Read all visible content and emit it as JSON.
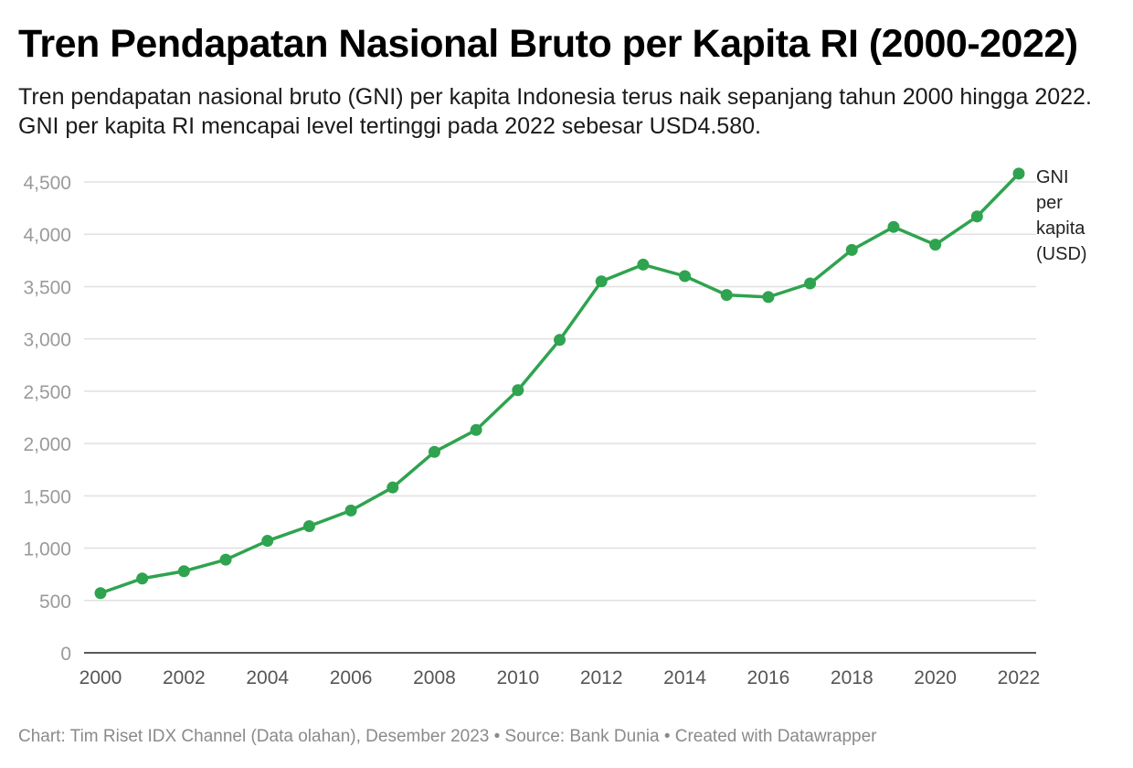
{
  "title": "Tren Pendapatan Nasional Bruto per Kapita RI (2000-2022)",
  "subtitle": "Tren pendapatan nasional bruto (GNI) per kapita Indonesia terus naik sepanjang tahun 2000 hingga 2022. GNI per kapita RI mencapai level tertinggi pada 2022 sebesar USD4.580.",
  "footer": "Chart: Tim Riset IDX Channel (Data olahan), Desember 2023 • Source: Bank Dunia • Created with Datawrapper",
  "colors": {
    "line": "#2fa34f",
    "grid": "#e0e0e0",
    "axis": "#222222"
  },
  "chart_data": {
    "type": "line",
    "title": "Tren Pendapatan Nasional Bruto per Kapita RI (2000-2022)",
    "xlabel": "",
    "ylabel": "",
    "x": [
      2000,
      2001,
      2002,
      2003,
      2004,
      2005,
      2006,
      2007,
      2008,
      2009,
      2010,
      2011,
      2012,
      2013,
      2014,
      2015,
      2016,
      2017,
      2018,
      2019,
      2020,
      2021,
      2022
    ],
    "series": [
      {
        "name": "GNI per kapita (USD)",
        "label_lines": [
          "GNI",
          "per",
          "kapita",
          "(USD)"
        ],
        "values": [
          570,
          710,
          780,
          890,
          1070,
          1210,
          1360,
          1580,
          1920,
          2130,
          2510,
          2990,
          3550,
          3710,
          3600,
          3420,
          3400,
          3530,
          3850,
          4070,
          3900,
          4170,
          4580
        ]
      }
    ],
    "ylim": [
      0,
      4500
    ],
    "yticks": [
      0,
      500,
      1000,
      1500,
      2000,
      2500,
      3000,
      3500,
      4000,
      4500
    ],
    "ytick_labels": [
      "0",
      "500",
      "1,000",
      "1,500",
      "2,000",
      "2,500",
      "3,000",
      "3,500",
      "4,000",
      "4,500"
    ],
    "xticks": [
      2000,
      2002,
      2004,
      2006,
      2008,
      2010,
      2012,
      2014,
      2016,
      2018,
      2020,
      2022
    ],
    "xtick_labels": [
      "2000",
      "2002",
      "2004",
      "2006",
      "2008",
      "2010",
      "2012",
      "2014",
      "2016",
      "2018",
      "2020",
      "2022"
    ],
    "grid": true,
    "legend": "right"
  }
}
